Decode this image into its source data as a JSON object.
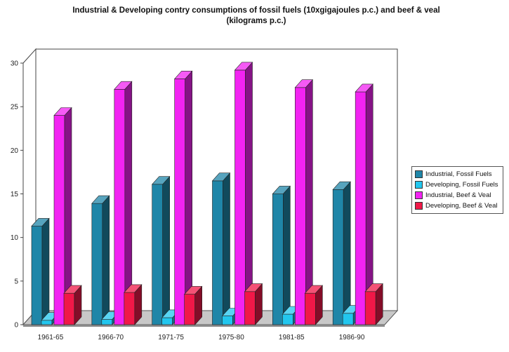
{
  "chart_data": {
    "type": "bar",
    "title_line1": "Industrial & Developing contry consumptions of fossil fuels (10xgigajoules p.c.) and beef & veal",
    "title_line2": "(kilograms p.c.)",
    "categories": [
      "1961-65",
      "1966-70",
      "1971-75",
      "1975-80",
      "1981-85",
      "1986-90"
    ],
    "series": [
      {
        "name": "Industrial,  Fossil Fuels",
        "values": [
          11.3,
          13.9,
          16.1,
          16.5,
          15.0,
          15.5
        ],
        "color": "#1f86a8"
      },
      {
        "name": "Developing, Fossil Fuels",
        "values": [
          0.5,
          0.6,
          0.8,
          1.0,
          1.2,
          1.3
        ],
        "color": "#22c6ee"
      },
      {
        "name": "Industrial, Beef  & Veal",
        "values": [
          24.0,
          27.0,
          28.2,
          29.2,
          27.2,
          26.7
        ],
        "color": "#f223f2"
      },
      {
        "name": "Developing, Beef & Veal",
        "values": [
          3.6,
          3.7,
          3.5,
          3.8,
          3.6,
          3.8
        ],
        "color": "#f01848"
      }
    ],
    "y_ticks": [
      "0",
      "5",
      "10",
      "15",
      "20",
      "25",
      "30"
    ],
    "ylim": [
      0,
      30
    ],
    "grid": false,
    "legend_position": "right"
  }
}
